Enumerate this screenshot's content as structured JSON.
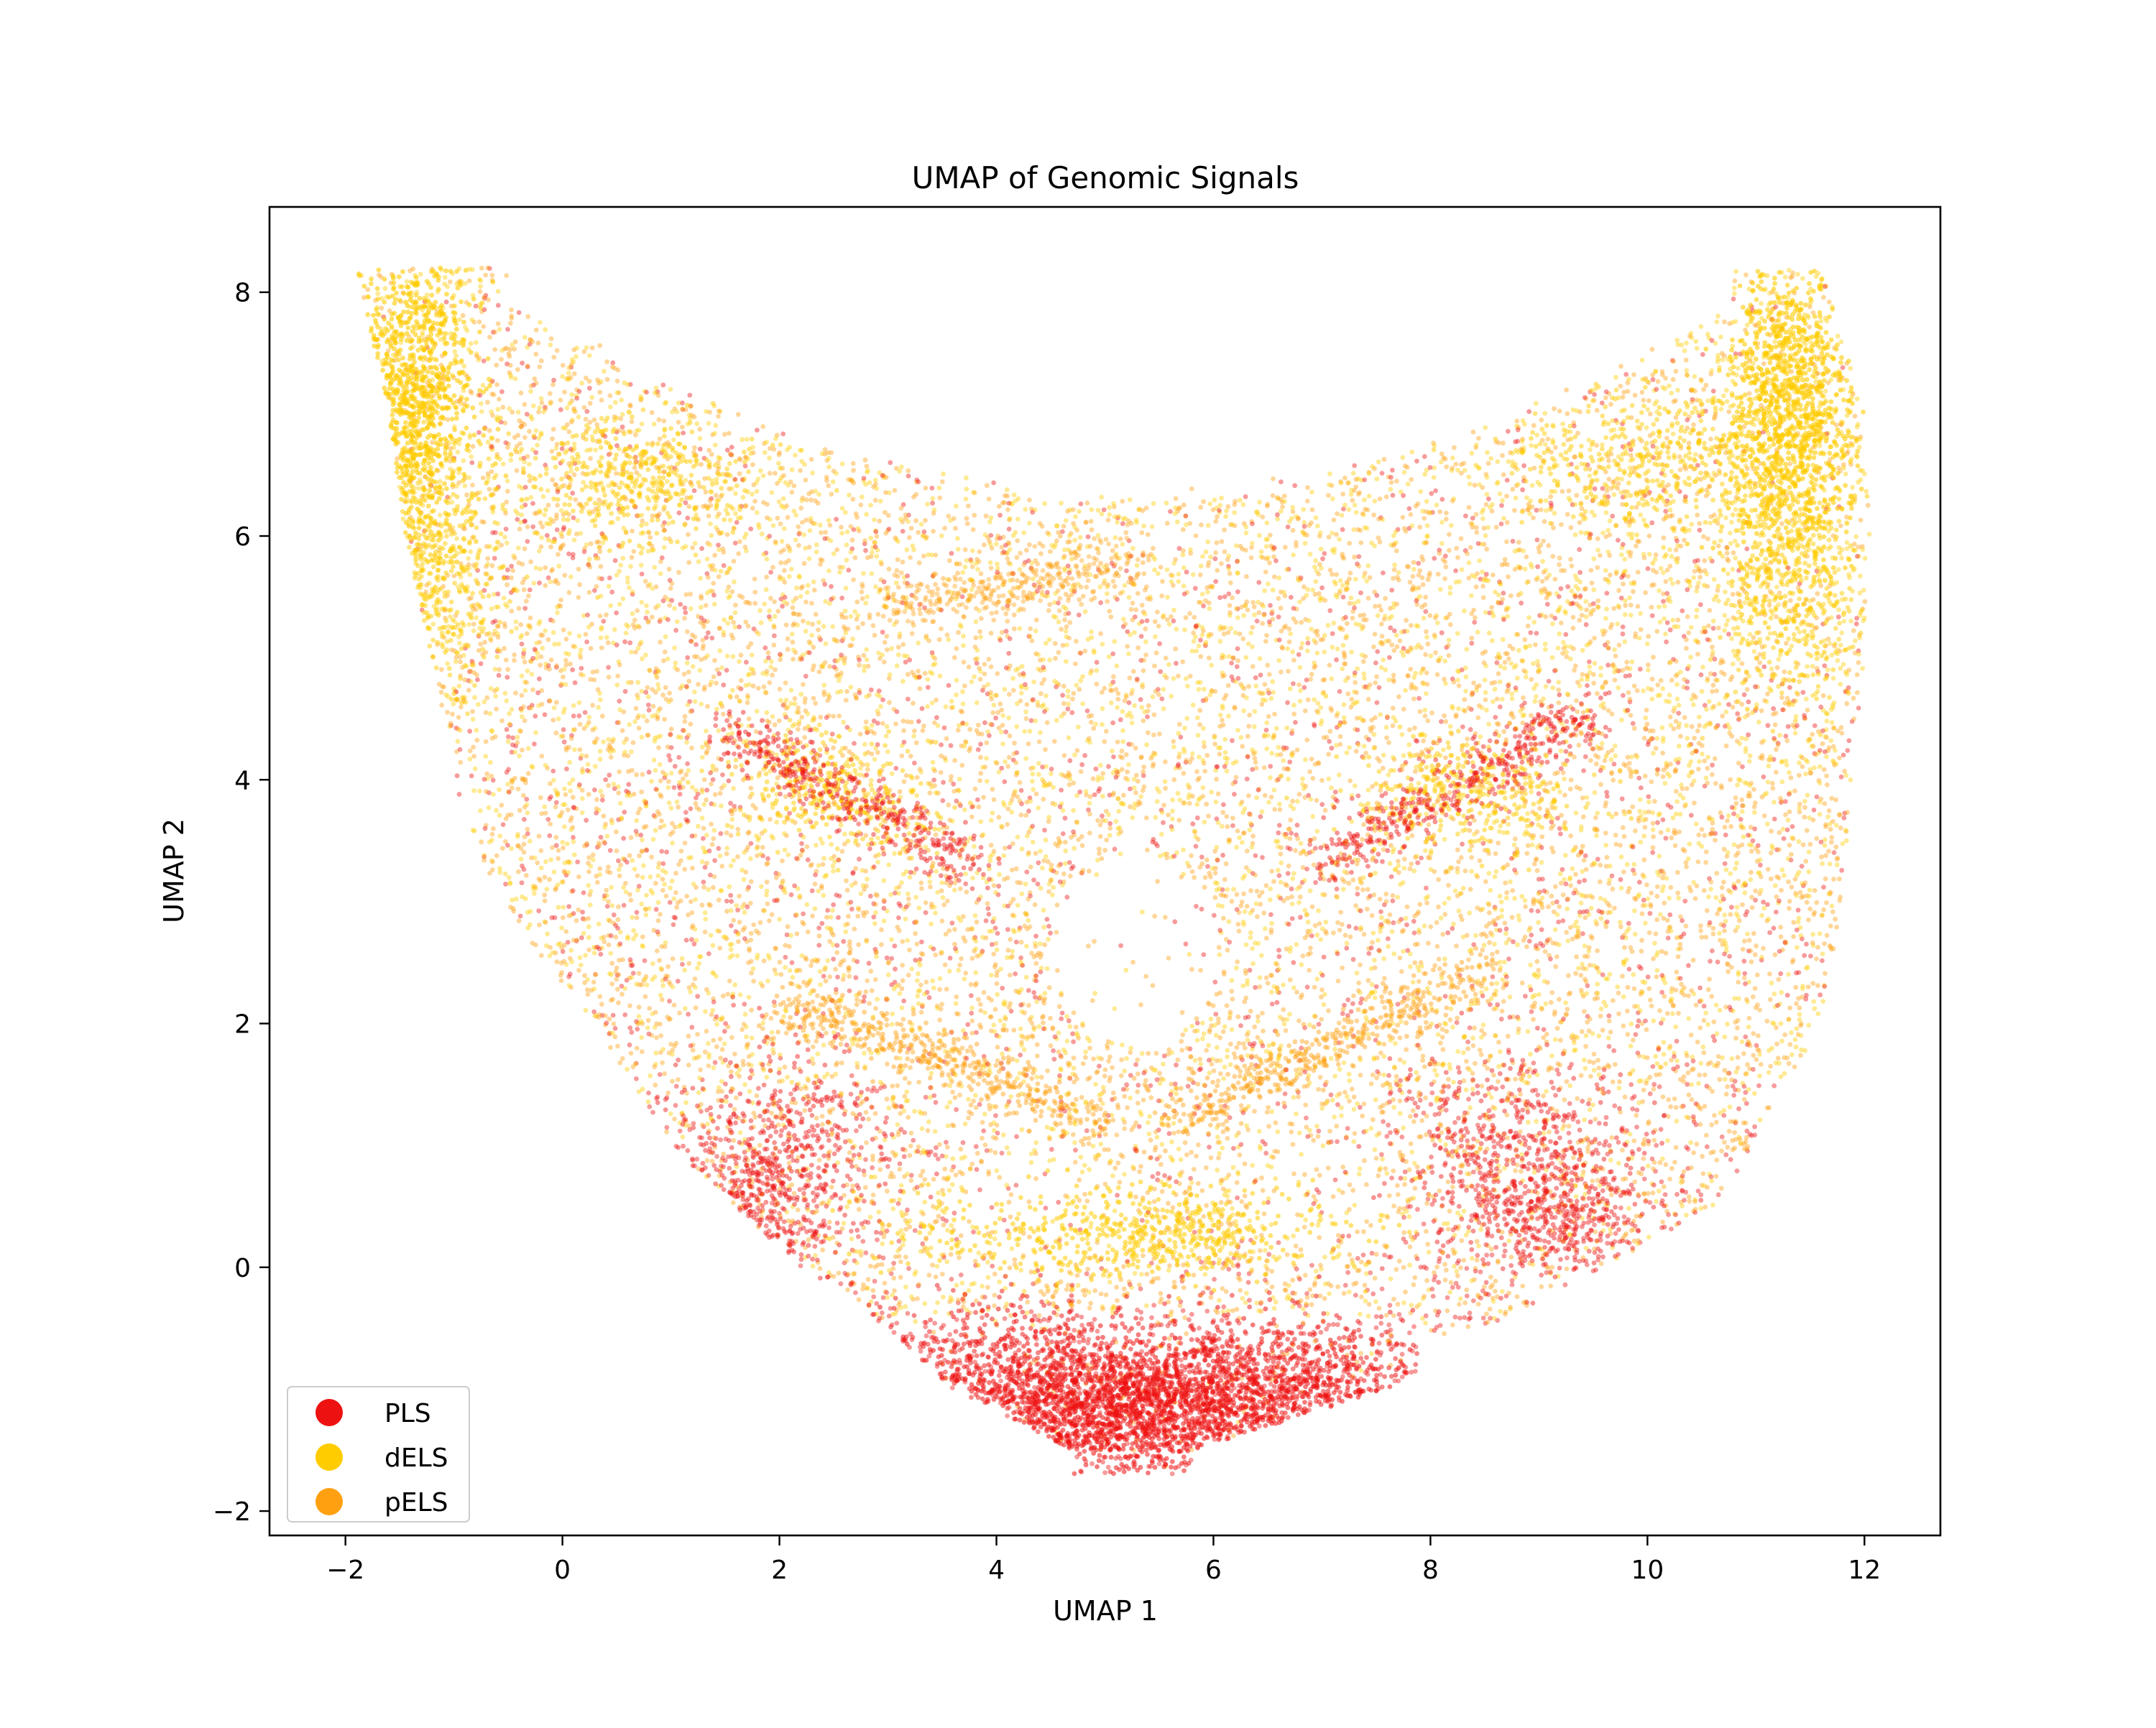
{
  "chart_data": {
    "type": "scatter",
    "title": "UMAP of Genomic Signals",
    "xlabel": "UMAP 1",
    "ylabel": "UMAP 2",
    "xlim": [
      -2.7,
      12.7
    ],
    "ylim": [
      -2.2,
      8.7
    ],
    "xticks": [
      -2,
      0,
      2,
      4,
      6,
      8,
      10,
      12
    ],
    "yticks": [
      -2,
      0,
      2,
      4,
      6,
      8
    ],
    "xtick_labels": [
      "−2",
      "0",
      "2",
      "4",
      "6",
      "8",
      "10",
      "12"
    ],
    "ytick_labels": [
      "−2",
      "0",
      "2",
      "4",
      "6",
      "8"
    ],
    "grid": false,
    "legend_position": "lower-left",
    "series": [
      {
        "name": "PLS",
        "color": "#ee1111",
        "description_points": [
          [
            5.2,
            -1.5
          ],
          [
            4.5,
            -1.3
          ],
          [
            6.0,
            -1.3
          ],
          [
            3.5,
            -0.9
          ],
          [
            7.0,
            -1.0
          ],
          [
            5.0,
            -0.8
          ],
          [
            6.5,
            -0.7
          ],
          [
            4.0,
            -0.7
          ],
          [
            2.0,
            0.8
          ],
          [
            1.5,
            0.4
          ],
          [
            8.5,
            1.0
          ],
          [
            9.2,
            0.5
          ],
          [
            5.5,
            1.2
          ],
          [
            3.6,
            3.4
          ],
          [
            7.2,
            3.5
          ],
          [
            1.2,
            4.8
          ],
          [
            9.0,
            4.8
          ],
          [
            0.0,
            4.0
          ],
          [
            10.2,
            3.5
          ],
          [
            5.2,
            3.0
          ]
        ]
      },
      {
        "name": "dELS",
        "color": "#ffcc00",
        "description_points": [
          [
            -1.6,
            7.6
          ],
          [
            -1.2,
            7.9
          ],
          [
            -1.8,
            6.8
          ],
          [
            11.2,
            7.9
          ],
          [
            11.6,
            7.2
          ],
          [
            11.8,
            6.5
          ],
          [
            -1.5,
            6.0
          ],
          [
            0.5,
            6.6
          ],
          [
            10.0,
            6.5
          ],
          [
            5.2,
            0.3
          ],
          [
            4.3,
            0.4
          ],
          [
            6.4,
            0.3
          ],
          [
            2.5,
            4.0
          ],
          [
            8.2,
            3.9
          ],
          [
            3.5,
            6.3
          ],
          [
            6.8,
            6.0
          ],
          [
            0.0,
            8.0
          ],
          [
            10.0,
            7.9
          ]
        ]
      },
      {
        "name": "pELS",
        "color": "#ffa010",
        "description_points": [
          [
            -1.0,
            5.5
          ],
          [
            0.0,
            5.0
          ],
          [
            1.0,
            5.6
          ],
          [
            2.5,
            5.2
          ],
          [
            4.5,
            5.6
          ],
          [
            6.5,
            5.4
          ],
          [
            8.5,
            5.6
          ],
          [
            10.5,
            5.5
          ],
          [
            0.0,
            3.0
          ],
          [
            1.0,
            2.0
          ],
          [
            2.0,
            2.5
          ],
          [
            3.0,
            1.8
          ],
          [
            8.0,
            2.0
          ],
          [
            9.0,
            2.8
          ],
          [
            10.0,
            2.0
          ],
          [
            10.8,
            3.5
          ],
          [
            4.0,
            3.8
          ],
          [
            6.5,
            4.5
          ],
          [
            3.0,
            0.2
          ],
          [
            8.5,
            0.4
          ]
        ]
      }
    ]
  }
}
